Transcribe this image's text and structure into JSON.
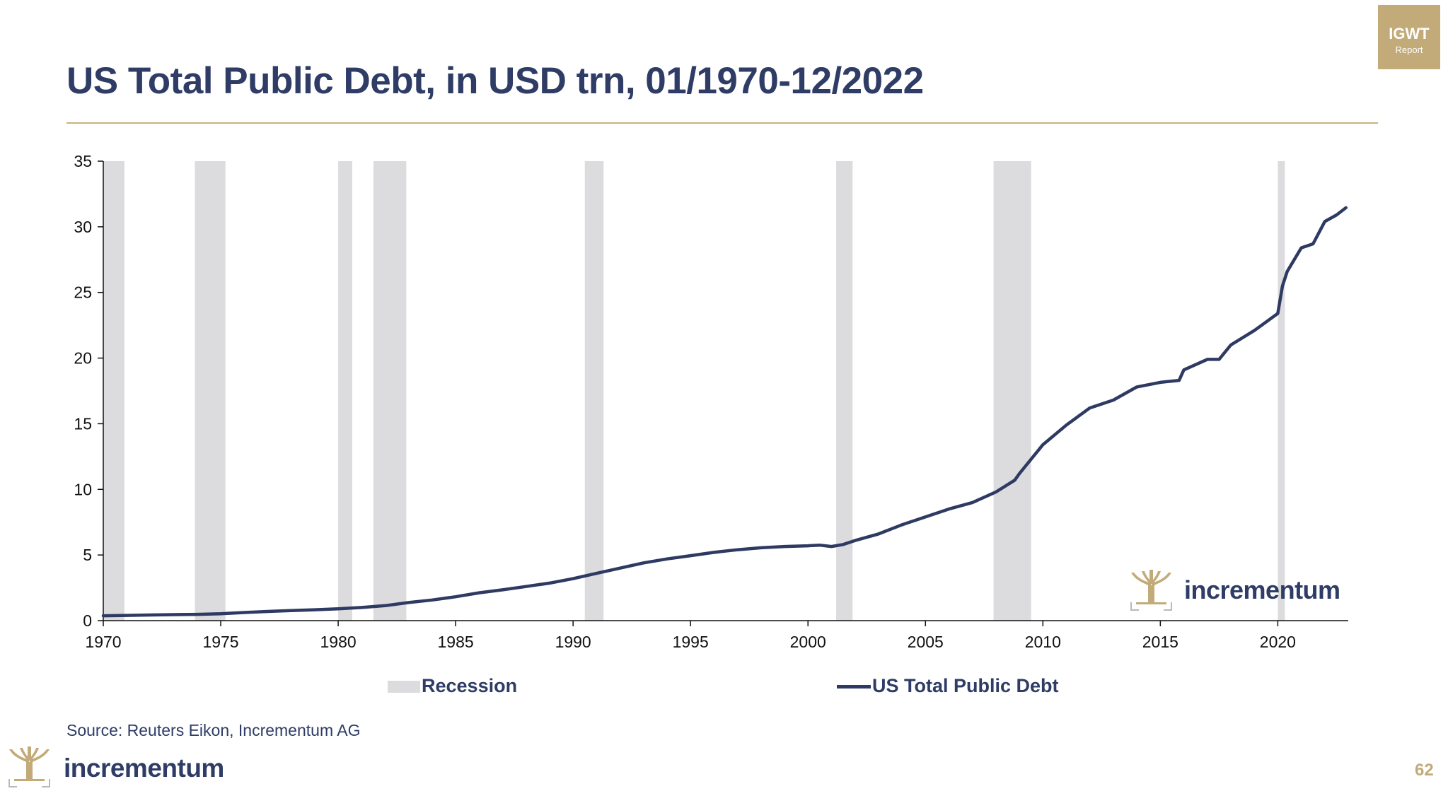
{
  "title": "US Total Public Debt, in USD trn, 01/1970-12/2022",
  "badge": {
    "line1": "IGWT",
    "line2": "Report"
  },
  "source": "Source: Reuters Eikon, Incrementum AG",
  "brand": "incrementum",
  "page_number": "62",
  "colors": {
    "line": "#2e3a62",
    "recession": "#dcdcde",
    "gold": "#c2ab78",
    "title": "#2e3c66"
  },
  "legend": {
    "recession": "Recession",
    "debt": "US Total Public Debt"
  },
  "chart_data": {
    "type": "line",
    "title": "US Total Public Debt, in USD trn, 01/1970-12/2022",
    "xlabel": "",
    "ylabel": "",
    "xlim": [
      1970,
      2023
    ],
    "ylim": [
      0,
      35
    ],
    "x_ticks": [
      1970,
      1975,
      1980,
      1985,
      1990,
      1995,
      2000,
      2005,
      2010,
      2015,
      2020
    ],
    "y_ticks": [
      0,
      5,
      10,
      15,
      20,
      25,
      30,
      35
    ],
    "grid": false,
    "legend_position": "bottom",
    "recessions": [
      [
        1970.0,
        1970.9
      ],
      [
        1973.9,
        1975.2
      ],
      [
        1980.0,
        1980.6
      ],
      [
        1981.5,
        1982.9
      ],
      [
        1990.5,
        1991.3
      ],
      [
        2001.2,
        2001.9
      ],
      [
        2007.9,
        2009.5
      ],
      [
        2020.0,
        2020.3
      ]
    ],
    "series": [
      {
        "name": "US Total Public Debt",
        "x": [
          1970,
          1971,
          1972,
          1973,
          1974,
          1975,
          1976,
          1977,
          1978,
          1979,
          1980,
          1981,
          1982,
          1983,
          1984,
          1985,
          1986,
          1987,
          1988,
          1989,
          1990,
          1991,
          1992,
          1993,
          1994,
          1995,
          1996,
          1997,
          1998,
          1999,
          2000,
          2000.5,
          2001,
          2001.5,
          2002,
          2003,
          2004,
          2005,
          2006,
          2007,
          2008,
          2008.8,
          2009,
          2010,
          2011,
          2012,
          2013,
          2014,
          2015,
          2015.8,
          2016,
          2017,
          2017.5,
          2018,
          2019,
          2020,
          2020.2,
          2020.4,
          2021,
          2021.5,
          2022,
          2022.5,
          2022.9
        ],
        "values": [
          0.37,
          0.4,
          0.43,
          0.46,
          0.48,
          0.53,
          0.62,
          0.7,
          0.77,
          0.83,
          0.9,
          1.0,
          1.14,
          1.38,
          1.57,
          1.82,
          2.12,
          2.35,
          2.6,
          2.86,
          3.2,
          3.6,
          4.0,
          4.4,
          4.7,
          4.95,
          5.2,
          5.4,
          5.55,
          5.65,
          5.7,
          5.75,
          5.65,
          5.8,
          6.1,
          6.6,
          7.3,
          7.9,
          8.5,
          9.0,
          9.8,
          10.7,
          11.2,
          13.4,
          14.9,
          16.2,
          16.8,
          17.8,
          18.15,
          18.3,
          19.1,
          19.9,
          19.9,
          21.0,
          22.1,
          23.4,
          25.5,
          26.6,
          28.4,
          28.7,
          30.4,
          30.9,
          31.45
        ]
      }
    ]
  }
}
